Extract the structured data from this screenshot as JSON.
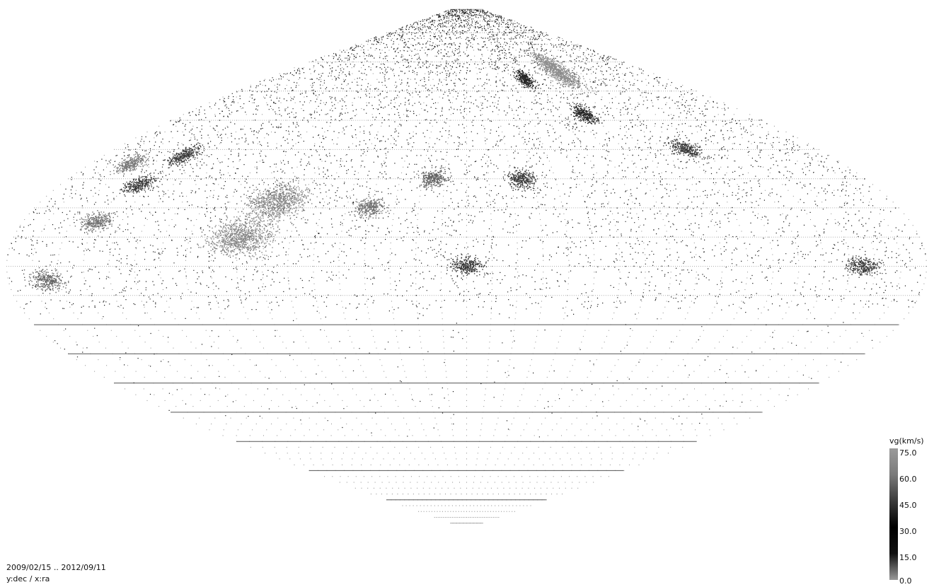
{
  "caption": {
    "date_range": "2009/02/15 .. 2012/09/11",
    "axes": "y:dec / x:ra"
  },
  "colorbar": {
    "title": "vg(km/s)",
    "ticks": [
      "75.0",
      "60.0",
      "45.0",
      "30.0",
      "15.0",
      "0.0"
    ],
    "colors": [
      "#9a9a9a",
      "#7a7a7a",
      "#3a3a3a",
      "#000000",
      "#111111",
      "#9a9a9a"
    ]
  },
  "chart_data": {
    "type": "scatter",
    "title": "",
    "xlabel": "",
    "ylabel": "",
    "x_axis": "ra",
    "y_axis": "dec",
    "xlim": [
      0,
      360
    ],
    "ylim": [
      -90,
      90
    ],
    "grid": true,
    "color_variable": "vg (km/s)",
    "color_range": [
      0,
      75
    ],
    "background_density": "uniform-random dots over full sky, densest in the northern hemisphere, sparse in the south",
    "clusters": [
      {
        "ra": 270,
        "dec": 67,
        "vg": 70
      },
      {
        "ra": 40,
        "dec": 38,
        "vg": 45
      },
      {
        "ra": 292,
        "dec": 40,
        "vg": 45
      },
      {
        "ra": 140,
        "dec": 20,
        "vg": 58
      },
      {
        "ra": 335,
        "dec": 0,
        "vg": 45
      },
      {
        "ra": 255,
        "dec": 52,
        "vg": 40
      },
      {
        "ra": 165,
        "dec": 30,
        "vg": 55
      },
      {
        "ra": 205,
        "dec": 30,
        "vg": 45
      },
      {
        "ra": 30,
        "dec": 15,
        "vg": 58
      },
      {
        "ra": 20,
        "dec": 35,
        "vg": 60
      },
      {
        "ra": 15,
        "dec": -5,
        "vg": 55
      },
      {
        "ra": 100,
        "dec": 22,
        "vg": 66
      },
      {
        "ra": 35,
        "dec": 28,
        "vg": 45
      },
      {
        "ra": 232,
        "dec": 64,
        "vg": 40
      },
      {
        "ra": 90,
        "dec": 10,
        "vg": 66
      },
      {
        "ra": 180,
        "dec": 0,
        "vg": 44
      }
    ]
  }
}
